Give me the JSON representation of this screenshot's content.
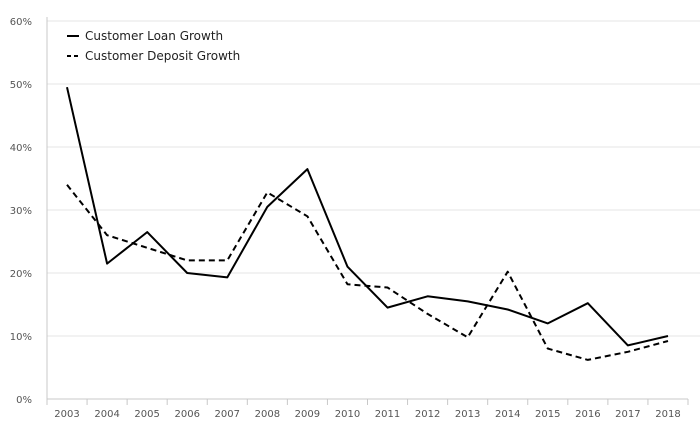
{
  "chart_data": {
    "type": "line",
    "title": "",
    "xlabel": "",
    "ylabel": "",
    "categories": [
      "2003",
      "2004",
      "2005",
      "2006",
      "2007",
      "2008",
      "2009",
      "2010",
      "2011",
      "2012",
      "2013",
      "2014",
      "2015",
      "2016",
      "2017",
      "2018"
    ],
    "ylim": [
      0,
      60
    ],
    "y_ticks": [
      0,
      10,
      20,
      30,
      40,
      50,
      60
    ],
    "y_tick_labels": [
      "0%",
      "10%",
      "20%",
      "30%",
      "40%",
      "50%",
      "60%"
    ],
    "grid": true,
    "legend_position": "top-left",
    "series": [
      {
        "name": "Customer Loan Growth",
        "style": "solid",
        "color": "#000000",
        "values": [
          49.5,
          21.5,
          26.5,
          20.0,
          19.3,
          30.5,
          36.5,
          21.0,
          14.5,
          16.3,
          15.5,
          14.2,
          12.0,
          15.2,
          8.5,
          10.0
        ]
      },
      {
        "name": "Customer Deposit Growth",
        "style": "dashed",
        "color": "#000000",
        "values": [
          34.0,
          26.0,
          24.0,
          22.0,
          22.0,
          32.8,
          29.0,
          18.2,
          17.7,
          13.5,
          9.8,
          20.2,
          8.0,
          6.2,
          7.5,
          9.2
        ]
      }
    ]
  }
}
